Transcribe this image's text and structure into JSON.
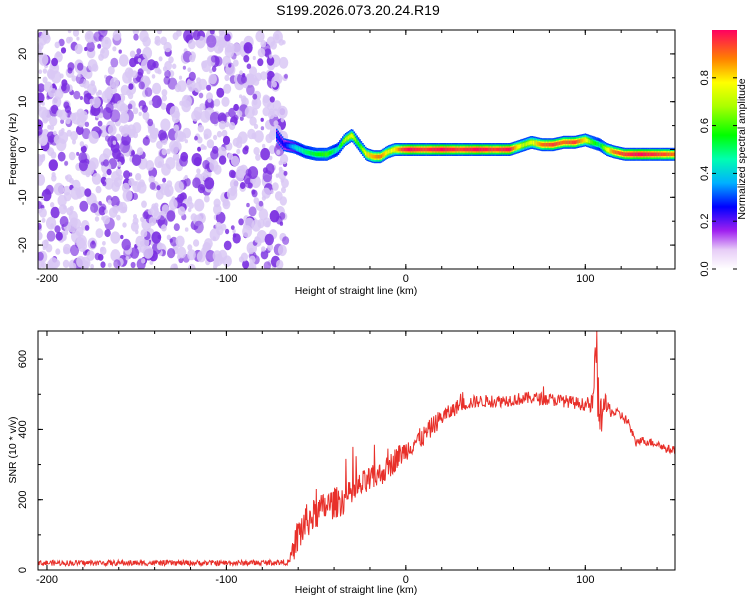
{
  "title": "S199.2026.073.20.24.R19",
  "colors": {
    "line": "#e8302a",
    "speckle": "#7a2ee0",
    "speckle_light": "#d9c8f5"
  },
  "chart_data": [
    {
      "type": "heatmap",
      "title": "S199.2026.073.20.24.R19",
      "xlabel": "Height of straight line (km)",
      "ylabel": "Frequency (Hz)",
      "xlim": [
        -205,
        150
      ],
      "ylim": [
        -25,
        25
      ],
      "xticks": [
        -200,
        -100,
        0,
        100
      ],
      "yticks": [
        -20,
        -10,
        0,
        10,
        20
      ],
      "noise_region_x": [
        -205,
        -70
      ],
      "ridge": {
        "x": [
          -72,
          -68,
          -62,
          -56,
          -50,
          -44,
          -38,
          -34,
          -30,
          -26,
          -22,
          -18,
          -14,
          -10,
          -6,
          -2,
          2,
          10,
          20,
          30,
          40,
          50,
          58,
          62,
          66,
          70,
          76,
          82,
          88,
          94,
          100,
          104,
          108,
          112,
          116,
          122,
          130,
          140,
          150
        ],
        "y": [
          3,
          1,
          0.5,
          -0.5,
          -1,
          -1,
          0,
          2,
          3,
          1,
          -1,
          -1.5,
          -1.5,
          -0.5,
          0,
          0,
          0,
          0,
          0,
          0,
          0,
          0,
          0,
          0.5,
          1,
          1.5,
          1,
          1,
          1.5,
          1.5,
          2,
          1.5,
          1,
          0,
          -0.5,
          -1,
          -1,
          -1,
          -1
        ],
        "amplitude": [
          0.3,
          0.25,
          0.4,
          0.5,
          0.55,
          0.6,
          0.45,
          0.7,
          0.75,
          0.55,
          0.8,
          0.85,
          0.9,
          0.75,
          0.8,
          0.95,
          1,
          0.95,
          1,
          0.95,
          1,
          0.95,
          1,
          0.8,
          0.7,
          0.75,
          0.9,
          0.95,
          0.9,
          0.95,
          0.8,
          0.6,
          0.5,
          0.75,
          0.9,
          0.95,
          1,
          0.95,
          0.9
        ]
      },
      "colorbar": {
        "label": "Normalized spectral amplitude",
        "range": [
          0,
          1
        ],
        "ticks": [
          "0.0",
          "0.2",
          "0.4",
          "0.6",
          "0.8"
        ],
        "tick_values": [
          0.0,
          0.2,
          0.4,
          0.6,
          0.8
        ]
      }
    },
    {
      "type": "line",
      "xlabel": "Height of straight line (km)",
      "ylabel": "SNR (10 * v/v)",
      "xlim": [
        -205,
        150
      ],
      "ylim": [
        0,
        680
      ],
      "xticks": [
        -200,
        -100,
        0,
        100
      ],
      "yticks": [
        0,
        200,
        400,
        600
      ],
      "series": [
        {
          "name": "SNR",
          "envelope_x": [
            -205,
            -170,
            -130,
            -90,
            -65,
            -60,
            -55,
            -50,
            -45,
            -40,
            -35,
            -30,
            -25,
            -20,
            -15,
            -10,
            -5,
            0,
            5,
            10,
            15,
            20,
            25,
            30,
            40,
            50,
            60,
            70,
            80,
            90,
            100,
            104,
            106,
            108,
            110,
            115,
            120,
            124,
            126,
            128,
            130,
            135,
            140,
            145,
            150
          ],
          "envelope_y": [
            20,
            20,
            20,
            20,
            22,
            100,
            140,
            160,
            180,
            190,
            200,
            215,
            240,
            255,
            270,
            290,
            320,
            340,
            365,
            380,
            410,
            435,
            450,
            470,
            480,
            480,
            485,
            490,
            485,
            480,
            470,
            470,
            580,
            420,
            470,
            450,
            440,
            420,
            390,
            360,
            370,
            365,
            360,
            345,
            340
          ],
          "noise_amplitude": [
            8,
            8,
            8,
            8,
            8,
            60,
            50,
            45,
            45,
            45,
            45,
            40,
            40,
            40,
            35,
            35,
            35,
            30,
            30,
            30,
            28,
            25,
            22,
            20,
            18,
            18,
            18,
            18,
            18,
            18,
            18,
            30,
            60,
            80,
            40,
            15,
            15,
            15,
            15,
            12,
            12,
            12,
            12,
            12,
            12
          ]
        }
      ]
    }
  ]
}
